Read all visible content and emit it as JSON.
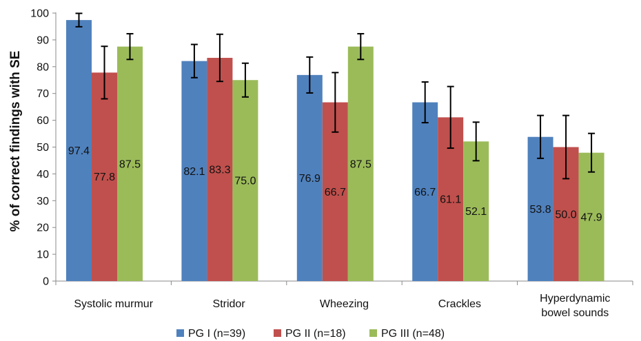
{
  "chart_data": {
    "type": "bar",
    "ylabel": "% of correct findings with SE",
    "xlabel": "",
    "ylim": [
      0,
      100
    ],
    "yticks": [
      0,
      10,
      20,
      30,
      40,
      50,
      60,
      70,
      80,
      90,
      100
    ],
    "grid": false,
    "legend_position": "bottom",
    "categories": [
      [
        "Systolic murmur"
      ],
      [
        "Stridor"
      ],
      [
        "Wheezing"
      ],
      [
        "Crackles"
      ],
      [
        "Hyperdynamic",
        "bowel sounds"
      ]
    ],
    "series": [
      {
        "name": "PG I (n=39)",
        "color": "#4F81BD",
        "values": [
          97.4,
          82.1,
          76.9,
          66.7,
          53.8
        ],
        "value_labels": [
          "97.4",
          "82.1",
          "76.9",
          "66.7",
          "53.8"
        ],
        "error": [
          2.5,
          6.2,
          6.7,
          7.6,
          8.0
        ]
      },
      {
        "name": "PG II (n=18)",
        "color": "#C0504D",
        "values": [
          77.8,
          83.3,
          66.7,
          61.1,
          50.0
        ],
        "value_labels": [
          "77.8",
          "83.3",
          "66.7",
          "61.1",
          "50.0"
        ],
        "error": [
          9.8,
          8.8,
          11.1,
          11.5,
          11.8
        ]
      },
      {
        "name": "PG III (n=48)",
        "color": "#9BBB59",
        "values": [
          87.5,
          75.0,
          87.5,
          52.1,
          47.9
        ],
        "value_labels": [
          "87.5",
          "75.0",
          "87.5",
          "52.1",
          "47.9"
        ],
        "error": [
          4.8,
          6.3,
          4.8,
          7.2,
          7.2
        ]
      }
    ]
  }
}
